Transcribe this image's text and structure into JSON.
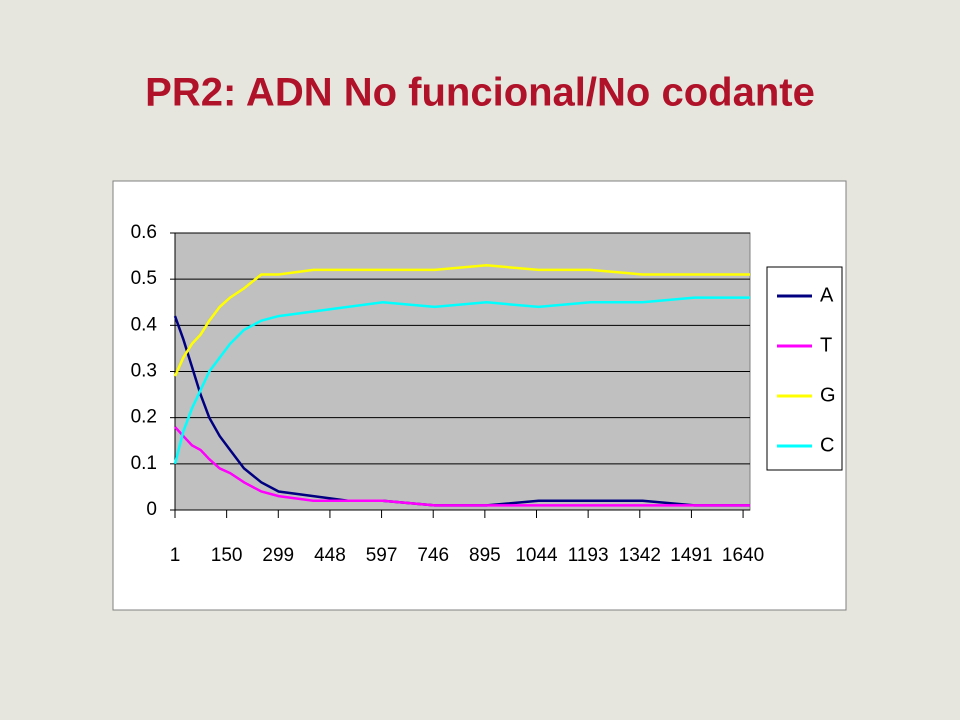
{
  "chart_data": {
    "type": "line",
    "title": "PR2: ADN No funcional/No codante",
    "x": [
      1,
      25,
      50,
      75,
      100,
      130,
      160,
      200,
      250,
      300,
      400,
      500,
      600,
      750,
      900,
      1050,
      1200,
      1350,
      1500,
      1660
    ],
    "series": [
      {
        "name": "A",
        "color": "#000080",
        "values": [
          0.42,
          0.37,
          0.31,
          0.25,
          0.2,
          0.16,
          0.13,
          0.09,
          0.06,
          0.04,
          0.03,
          0.02,
          0.02,
          0.01,
          0.01,
          0.02,
          0.02,
          0.02,
          0.01,
          0.01
        ]
      },
      {
        "name": "T",
        "color": "#ff00ff",
        "values": [
          0.18,
          0.16,
          0.14,
          0.13,
          0.11,
          0.09,
          0.08,
          0.06,
          0.04,
          0.03,
          0.02,
          0.02,
          0.02,
          0.01,
          0.01,
          0.01,
          0.01,
          0.01,
          0.01,
          0.01
        ]
      },
      {
        "name": "G",
        "color": "#ffff00",
        "values": [
          0.29,
          0.33,
          0.36,
          0.38,
          0.41,
          0.44,
          0.46,
          0.48,
          0.51,
          0.51,
          0.52,
          0.52,
          0.52,
          0.52,
          0.53,
          0.52,
          0.52,
          0.51,
          0.51,
          0.51
        ]
      },
      {
        "name": "C",
        "color": "#00ffff",
        "values": [
          0.1,
          0.17,
          0.22,
          0.26,
          0.3,
          0.33,
          0.36,
          0.39,
          0.41,
          0.42,
          0.43,
          0.44,
          0.45,
          0.44,
          0.45,
          0.44,
          0.45,
          0.45,
          0.46,
          0.46
        ]
      }
    ],
    "xlim": [
      1,
      1660
    ],
    "xticks": [
      1,
      150,
      299,
      448,
      597,
      746,
      895,
      1044,
      1193,
      1342,
      1491,
      1640
    ],
    "ylim": [
      0,
      0.6
    ],
    "yticks": [
      0,
      0.1,
      0.2,
      0.3,
      0.4,
      0.5,
      0.6
    ],
    "grid": true,
    "legend": "right"
  }
}
